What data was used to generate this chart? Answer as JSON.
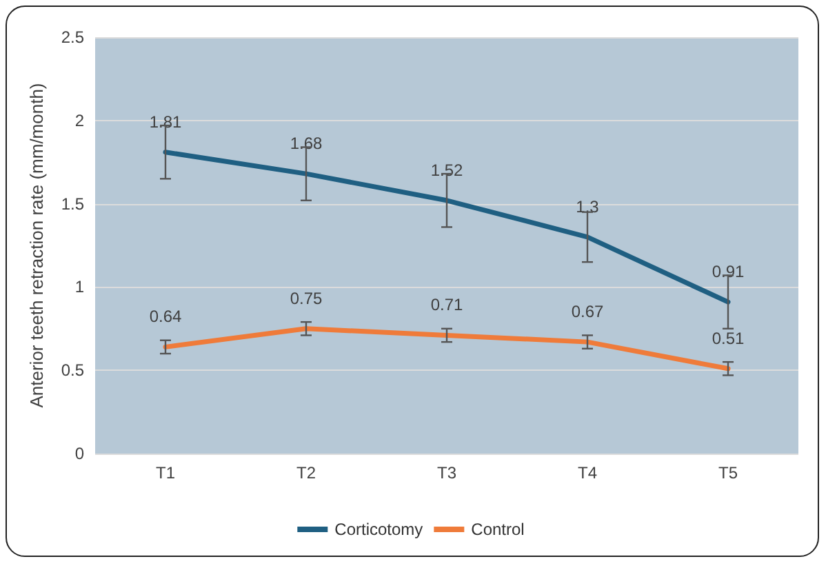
{
  "chart_data": {
    "type": "line",
    "ylabel": "Anterior teeth retraction rate (mm/month)",
    "categories": [
      "T1",
      "T2",
      "T3",
      "T4",
      "T5"
    ],
    "series": [
      {
        "name": "Corticotomy",
        "color": "#1f5f82",
        "values": [
          1.81,
          1.68,
          1.52,
          1.3,
          0.91
        ],
        "errors": [
          0.16,
          0.16,
          0.16,
          0.15,
          0.16
        ]
      },
      {
        "name": "Control",
        "color": "#ef7b3a",
        "values": [
          0.64,
          0.75,
          0.71,
          0.67,
          0.51
        ],
        "errors": [
          0.04,
          0.04,
          0.04,
          0.04,
          0.04
        ]
      }
    ],
    "ylim": [
      0,
      2.5
    ],
    "yticks": [
      0,
      0.5,
      1,
      1.5,
      2,
      2.5
    ],
    "grid": "y",
    "legend": "bottom",
    "data_labels": true,
    "marker": "none",
    "line_style": "solid"
  }
}
